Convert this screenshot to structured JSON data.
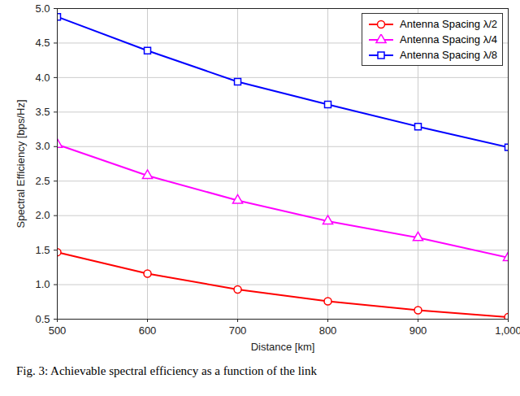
{
  "chart_data": {
    "type": "line",
    "caption": "Fig. 3: Achievable spectral efficiency as a function of the link",
    "x_label": "Distance [km]",
    "y_label": "Spectral Efficiency [bps/Hz]",
    "x": [
      500,
      600,
      700,
      800,
      900,
      1000
    ],
    "series": [
      {
        "name": "Antenna Spacing λ/2",
        "color": "#ff0000",
        "marker": "circle",
        "line_style": "solid",
        "values": [
          1.47,
          1.16,
          0.93,
          0.76,
          0.63,
          0.53
        ]
      },
      {
        "name": "Antenna Spacing λ/4",
        "color": "#ff00ff",
        "marker": "triangle",
        "line_style": "solid",
        "values": [
          3.03,
          2.58,
          2.22,
          1.92,
          1.68,
          1.39
        ]
      },
      {
        "name": "Antenna Spacing λ/8",
        "color": "#0000ff",
        "marker": "square",
        "line_style": "solid",
        "values": [
          4.88,
          4.39,
          3.94,
          3.61,
          3.29,
          2.99
        ]
      }
    ],
    "xlim": [
      500,
      1000
    ],
    "xticks": [
      500,
      600,
      700,
      800,
      900,
      1000
    ],
    "ylim": [
      0.5,
      5
    ],
    "yticks": [
      0.5,
      1,
      1.5,
      2,
      2.5,
      3,
      3.5,
      4,
      4.5,
      5
    ],
    "grid": true,
    "legend": "upper right"
  }
}
